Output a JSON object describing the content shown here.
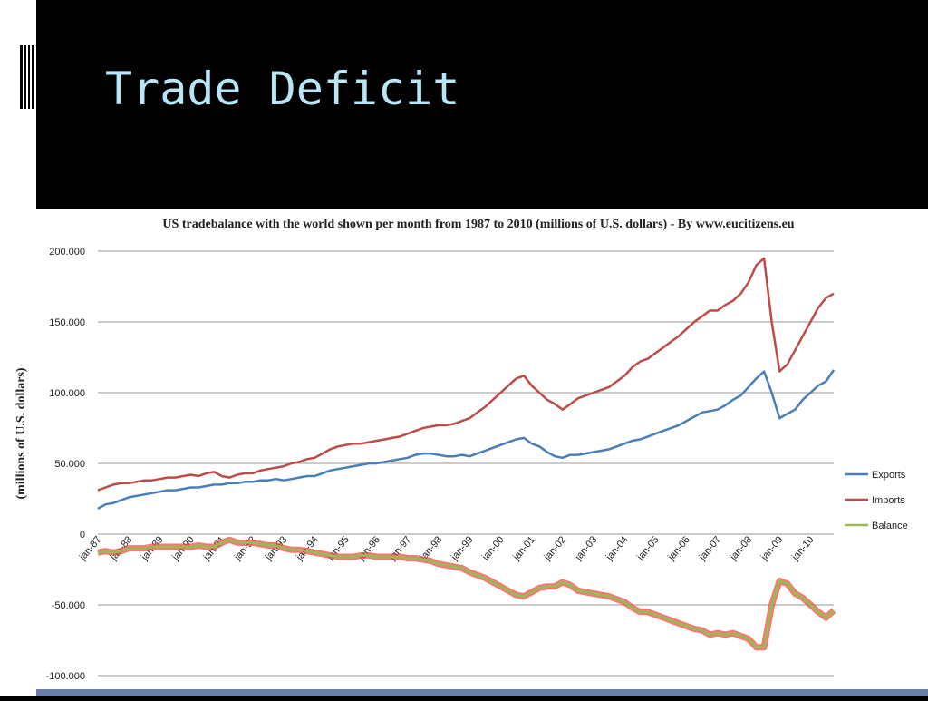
{
  "slide_title": "Trade Deficit",
  "chart_data": {
    "type": "line",
    "title": "US tradebalance with the world shown per month from 1987 to 2010 (millions of U.S. dollars) - By www.eucitizens.eu",
    "y_label": "(millions of U.S. dollars)",
    "categories": [
      "jan-87",
      null,
      null,
      null,
      "jan-88",
      null,
      null,
      null,
      "jan-89",
      null,
      null,
      null,
      "jan-90",
      null,
      null,
      null,
      "jan-91",
      null,
      null,
      null,
      "jan-92",
      null,
      null,
      null,
      "jan-93",
      null,
      null,
      null,
      "jan-94",
      null,
      null,
      null,
      "jan-95",
      null,
      null,
      null,
      "jan-96",
      null,
      null,
      null,
      "jan-97",
      null,
      null,
      null,
      "jan-98",
      null,
      null,
      null,
      "jan-99",
      null,
      null,
      null,
      "jan-00",
      null,
      null,
      null,
      "jan-01",
      null,
      null,
      null,
      "jan-02",
      null,
      null,
      null,
      "jan-03",
      null,
      null,
      null,
      "jan-04",
      null,
      null,
      null,
      "jan-05",
      null,
      null,
      null,
      "jan-06",
      null,
      null,
      null,
      "jan-07",
      null,
      null,
      null,
      "jan-08",
      null,
      null,
      null,
      "jan-09",
      null,
      null,
      null,
      "jan-10",
      null,
      null,
      null
    ],
    "series": [
      {
        "name": "Exports",
        "color": "#4a7ebb",
        "values": [
          18000,
          21000,
          22000,
          24000,
          26000,
          27000,
          28000,
          29000,
          30000,
          31000,
          31000,
          32000,
          33000,
          33000,
          34000,
          35000,
          35000,
          36000,
          36000,
          37000,
          37000,
          38000,
          38000,
          39000,
          38000,
          39000,
          40000,
          41000,
          41000,
          43000,
          45000,
          46000,
          47000,
          48000,
          49000,
          50000,
          50000,
          51000,
          52000,
          53000,
          54000,
          56000,
          57000,
          57000,
          56000,
          55000,
          55000,
          56000,
          55000,
          57000,
          59000,
          61000,
          63000,
          65000,
          67000,
          68000,
          64000,
          62000,
          58000,
          55000,
          54000,
          56000,
          56000,
          57000,
          58000,
          59000,
          60000,
          62000,
          64000,
          66000,
          67000,
          69000,
          71000,
          73000,
          75000,
          77000,
          80000,
          83000,
          86000,
          87000,
          88000,
          91000,
          95000,
          98000,
          104000,
          110000,
          115000,
          100000,
          82000,
          85000,
          88000,
          95000,
          100000,
          105000,
          108000,
          116000
        ]
      },
      {
        "name": "Imports",
        "color": "#be4b48",
        "values": [
          31000,
          33000,
          35000,
          36000,
          36000,
          37000,
          38000,
          38000,
          39000,
          40000,
          40000,
          41000,
          42000,
          41000,
          43000,
          44000,
          41000,
          40000,
          42000,
          43000,
          43000,
          45000,
          46000,
          47000,
          48000,
          50000,
          51000,
          53000,
          54000,
          57000,
          60000,
          62000,
          63000,
          64000,
          64000,
          65000,
          66000,
          67000,
          68000,
          69000,
          71000,
          73000,
          75000,
          76000,
          77000,
          77000,
          78000,
          80000,
          82000,
          86000,
          90000,
          95000,
          100000,
          105000,
          110000,
          112000,
          105000,
          100000,
          95000,
          92000,
          88000,
          92000,
          96000,
          98000,
          100000,
          102000,
          104000,
          108000,
          112000,
          118000,
          122000,
          124000,
          128000,
          132000,
          136000,
          140000,
          145000,
          150000,
          154000,
          158000,
          158000,
          162000,
          165000,
          170000,
          178000,
          190000,
          195000,
          150000,
          115000,
          120000,
          130000,
          140000,
          150000,
          160000,
          167000,
          170000
        ]
      },
      {
        "name": "Balance",
        "color": "#98b954",
        "values": [
          -13000,
          -12000,
          -13000,
          -12000,
          -10000,
          -10000,
          -10000,
          -9000,
          -9000,
          -9000,
          -9000,
          -9000,
          -9000,
          -8000,
          -9000,
          -9000,
          -6000,
          -4000,
          -6000,
          -6000,
          -6000,
          -7000,
          -8000,
          -8000,
          -10000,
          -11000,
          -11000,
          -12000,
          -13000,
          -14000,
          -15000,
          -16000,
          -16000,
          -16000,
          -15000,
          -15000,
          -16000,
          -16000,
          -16000,
          -16000,
          -17000,
          -17000,
          -18000,
          -19000,
          -21000,
          -22000,
          -23000,
          -24000,
          -27000,
          -29000,
          -31000,
          -34000,
          -37000,
          -40000,
          -43000,
          -44000,
          -41000,
          -38000,
          -37000,
          -37000,
          -34000,
          -36000,
          -40000,
          -41000,
          -42000,
          -43000,
          -44000,
          -46000,
          -48000,
          -52000,
          -55000,
          -55000,
          -57000,
          -59000,
          -61000,
          -63000,
          -65000,
          -67000,
          -68000,
          -71000,
          -70000,
          -71000,
          -70000,
          -72000,
          -74000,
          -80000,
          -80000,
          -50000,
          -33000,
          -35000,
          -42000,
          -45000,
          -50000,
          -55000,
          -59000,
          -54000
        ]
      }
    ],
    "ylim": [
      -100000,
      200000
    ],
    "yticks": [
      {
        "value": -100000,
        "label": "-100.000"
      },
      {
        "value": -50000,
        "label": "-50.000"
      },
      0,
      {
        "value": 50000,
        "label": "50.000"
      },
      {
        "value": 100000,
        "label": "100.000"
      },
      {
        "value": 150000,
        "label": "150.000"
      },
      {
        "value": 200000,
        "label": "200.000"
      }
    ],
    "grid": true,
    "legend": "right"
  }
}
